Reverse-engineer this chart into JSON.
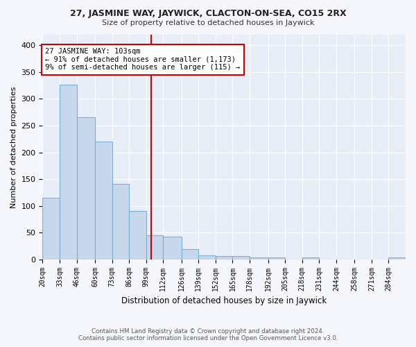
{
  "title": "27, JASMINE WAY, JAYWICK, CLACTON-ON-SEA, CO15 2RX",
  "subtitle": "Size of property relative to detached houses in Jaywick",
  "xlabel": "Distribution of detached houses by size in Jaywick",
  "ylabel": "Number of detached properties",
  "bar_color": "#c8d8ec",
  "bar_edge_color": "#7aafd4",
  "background_color": "#e8eef8",
  "fig_background": "#f5f7fc",
  "grid_color": "#ffffff",
  "categories": [
    "20sqm",
    "33sqm",
    "46sqm",
    "60sqm",
    "73sqm",
    "86sqm",
    "99sqm",
    "112sqm",
    "126sqm",
    "139sqm",
    "152sqm",
    "165sqm",
    "178sqm",
    "192sqm",
    "205sqm",
    "218sqm",
    "231sqm",
    "244sqm",
    "258sqm",
    "271sqm",
    "284sqm"
  ],
  "bar_heights": [
    115,
    327,
    266,
    220,
    141,
    90,
    45,
    43,
    19,
    8,
    6,
    6,
    4,
    4,
    0,
    4,
    0,
    0,
    0,
    0,
    4
  ],
  "bin_edges": [
    20,
    33,
    46,
    60,
    73,
    86,
    99,
    112,
    126,
    139,
    152,
    165,
    178,
    192,
    205,
    218,
    231,
    244,
    258,
    271,
    284,
    297
  ],
  "vline_x": 103,
  "vline_color": "#cc0000",
  "annotation_text": "27 JASMINE WAY: 103sqm\n← 91% of detached houses are smaller (1,173)\n9% of semi-detached houses are larger (115) →",
  "annotation_box_color": "#ffffff",
  "annotation_box_edge": "#cc0000",
  "ylim": [
    0,
    420
  ],
  "yticks": [
    0,
    50,
    100,
    150,
    200,
    250,
    300,
    350,
    400
  ],
  "footnote": "Contains HM Land Registry data © Crown copyright and database right 2024.\nContains public sector information licensed under the Open Government Licence v3.0."
}
